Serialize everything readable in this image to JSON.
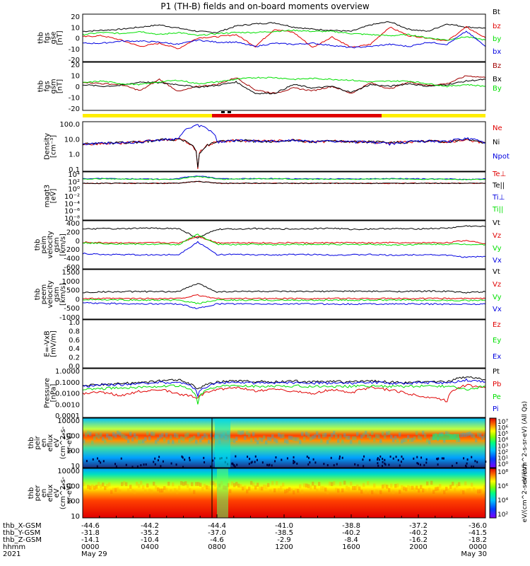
{
  "title": "P1 (TH-B) fields and on-board moments overview",
  "colors": {
    "black": "#000000",
    "red": "#e00000",
    "green": "#00e000",
    "blue": "#0000e0",
    "darkred": "#a00000",
    "bar_yellow": "#ffee00",
    "bar_red": "#e00000"
  },
  "chart_data": [
    {
      "type": "line",
      "ylabel": [
        "thb",
        "fgs",
        "gse",
        "[nT]"
      ],
      "yticks": [
        "20",
        "10",
        "0",
        "-10",
        "-20"
      ],
      "ylim": [
        -20,
        20
      ],
      "series": [
        {
          "name": "Bt",
          "color": "#000000",
          "values": [
            6,
            7,
            8,
            10,
            12,
            9,
            6,
            5,
            11,
            13,
            14,
            10,
            8,
            7,
            6,
            12,
            15,
            8,
            6,
            13,
            10,
            9
          ]
        },
        {
          "name": "bz",
          "color": "#e00000",
          "values": [
            1,
            2,
            -2,
            -8,
            -5,
            -10,
            0,
            1,
            3,
            -8,
            8,
            5,
            -9,
            1,
            -9,
            -6,
            10,
            2,
            0,
            -3,
            10,
            0
          ]
        },
        {
          "name": "by",
          "color": "#00e000",
          "values": [
            3,
            5,
            4,
            6,
            3,
            5,
            2,
            4,
            5,
            5,
            6,
            7,
            6,
            6,
            4,
            3,
            2,
            3,
            0,
            -2,
            1,
            -2
          ]
        },
        {
          "name": "bx",
          "color": "#0000e0",
          "values": [
            -5,
            -5,
            -3,
            -3,
            -4,
            -6,
            -2,
            -4,
            -4,
            -8,
            -5,
            -6,
            -5,
            -7,
            -9,
            -8,
            -6,
            -8,
            -4,
            -6,
            6,
            -8
          ]
        }
      ]
    },
    {
      "type": "line",
      "ylabel": [
        "thb",
        "fgs",
        "gsm",
        "[nT]"
      ],
      "yticks": [
        "20",
        "10",
        "0",
        "-10",
        "-20"
      ],
      "ylim": [
        -25,
        25
      ],
      "series": [
        {
          "name": "Bz",
          "color": "#a00000",
          "values": [
            5,
            3,
            2,
            -5,
            8,
            -6,
            0,
            2,
            10,
            -4,
            -8,
            -2,
            -5,
            0,
            -8,
            4,
            -3,
            5,
            1,
            3,
            12,
            10
          ]
        },
        {
          "name": "Bx",
          "color": "#000000",
          "values": [
            2,
            0,
            1,
            5,
            4,
            2,
            -1,
            1,
            5,
            -8,
            -8,
            2,
            -2,
            0,
            -7,
            2,
            0,
            3,
            0,
            2,
            6,
            8
          ]
        },
        {
          "name": "By",
          "color": "#00e000",
          "values": [
            4,
            6,
            3,
            2,
            5,
            7,
            3,
            5,
            8,
            10,
            10,
            8,
            9,
            8,
            7,
            5,
            6,
            6,
            3,
            0,
            2,
            0
          ]
        }
      ]
    },
    {
      "type": "line",
      "ylabel": [
        "Density",
        "[cm⁻³]"
      ],
      "yticks": [
        "100.0",
        "10.0",
        "1.0",
        "0.1"
      ],
      "ylim": [
        0.03,
        200
      ],
      "log": true,
      "series": [
        {
          "name": "Ne",
          "color": "#e00000",
          "values": [
            4,
            4.5,
            5,
            6,
            9,
            10,
            0.04,
            6,
            8,
            7,
            7,
            8,
            6,
            7,
            6,
            6,
            5,
            6,
            7,
            6,
            8,
            5
          ]
        },
        {
          "name": "Ni",
          "color": "#000000",
          "values": [
            4,
            4.5,
            5,
            6,
            9,
            10,
            0.05,
            6,
            8,
            7,
            7,
            8,
            6,
            7,
            6,
            6,
            5,
            6,
            7,
            6,
            10,
            5
          ]
        },
        {
          "name": "Npot",
          "color": "#0000e0",
          "values": [
            4,
            4.5,
            5,
            6,
            9,
            10,
            150,
            6,
            8,
            7,
            7,
            8,
            6,
            7,
            6,
            6,
            4,
            6,
            7,
            6,
            12,
            5
          ]
        }
      ]
    },
    {
      "type": "line",
      "ylabel": [
        "magt3",
        "[eV]"
      ],
      "yticks": [
        "10⁴",
        "10²",
        "10⁰",
        "10⁻²",
        "10⁻⁴",
        "10⁻⁶",
        "10⁻⁸"
      ],
      "ylim": [
        1e-08,
        10000.0
      ],
      "log": true,
      "series": [
        {
          "name": "Te⊥",
          "color": "#e00000",
          "values": [
            30,
            30,
            30,
            30,
            30,
            30,
            100,
            30,
            30,
            30,
            30,
            30,
            30,
            30,
            30,
            30,
            30,
            30,
            30,
            30,
            30,
            30
          ]
        },
        {
          "name": "Te||",
          "color": "#000000",
          "values": [
            30,
            30,
            30,
            30,
            30,
            30,
            100,
            30,
            30,
            30,
            30,
            30,
            30,
            30,
            30,
            30,
            30,
            30,
            30,
            30,
            30,
            30
          ]
        },
        {
          "name": "Ti⊥",
          "color": "#0000e0",
          "values": [
            500,
            600,
            500,
            500,
            400,
            500,
            3000,
            500,
            500,
            600,
            600,
            500,
            500,
            500,
            500,
            500,
            600,
            500,
            500,
            500,
            300,
            500
          ]
        },
        {
          "name": "Ti||",
          "color": "#00e000",
          "values": [
            400,
            500,
            400,
            400,
            350,
            400,
            2000,
            400,
            400,
            500,
            500,
            400,
            400,
            400,
            400,
            400,
            500,
            400,
            400,
            400,
            300,
            400
          ]
        }
      ]
    },
    {
      "type": "line",
      "ylabel": [
        "thb",
        "peim",
        "velocity",
        "gsm",
        "[km/s]"
      ],
      "yticks": [
        "400",
        "200",
        "0",
        "-200",
        "-400",
        "-600"
      ],
      "ylim": [
        -650,
        500
      ],
      "series": [
        {
          "name": "Vt",
          "color": "#000000",
          "values": [
            330,
            350,
            340,
            360,
            360,
            350,
            100,
            330,
            340,
            350,
            340,
            340,
            350,
            360,
            330,
            340,
            350,
            340,
            350,
            360,
            420,
            400
          ]
        },
        {
          "name": "Vz",
          "color": "#e00000",
          "values": [
            -10,
            -20,
            -20,
            -30,
            -20,
            -30,
            150,
            -20,
            -20,
            -20,
            -30,
            -20,
            -30,
            -20,
            -20,
            -30,
            -20,
            -30,
            -20,
            -20,
            40,
            -40
          ]
        },
        {
          "name": "Vy",
          "color": "#00e000",
          "values": [
            -20,
            -40,
            -50,
            -60,
            -60,
            -70,
            200,
            -60,
            -70,
            -60,
            -70,
            -60,
            -70,
            -60,
            -70,
            -60,
            -80,
            -70,
            -60,
            -60,
            -60,
            -70
          ]
        },
        {
          "name": "Vx",
          "color": "#0000e0",
          "values": [
            -300,
            -330,
            -330,
            -340,
            -340,
            -330,
            0,
            -330,
            -330,
            -340,
            -340,
            -330,
            -330,
            -340,
            -340,
            -330,
            -350,
            -340,
            -330,
            -350,
            -400,
            -380
          ]
        }
      ]
    },
    {
      "type": "line",
      "ylabel": [
        "thb",
        "peem",
        "velocity",
        "gsm",
        "[km/s]"
      ],
      "yticks": [
        "1500",
        "1000",
        "500",
        "0",
        "-500",
        "-1000"
      ],
      "ylim": [
        -1100,
        1600
      ],
      "series": [
        {
          "name": "Vt",
          "color": "#000000",
          "values": [
            350,
            400,
            400,
            420,
            400,
            420,
            900,
            400,
            420,
            430,
            420,
            410,
            420,
            430,
            440,
            420,
            430,
            420,
            440,
            430,
            350,
            400
          ]
        },
        {
          "name": "Vz",
          "color": "#e00000",
          "values": [
            0,
            0,
            0,
            0,
            0,
            0,
            200,
            0,
            0,
            0,
            0,
            0,
            0,
            0,
            0,
            0,
            0,
            0,
            0,
            0,
            0,
            0
          ]
        },
        {
          "name": "Vy",
          "color": "#00e000",
          "values": [
            -50,
            -80,
            -80,
            -100,
            -100,
            -100,
            -300,
            -100,
            -100,
            -100,
            -100,
            -100,
            -100,
            -100,
            -100,
            -100,
            -100,
            -100,
            -100,
            -100,
            -120,
            -100
          ]
        },
        {
          "name": "Vx",
          "color": "#0000e0",
          "values": [
            -250,
            -300,
            -300,
            -320,
            -320,
            -320,
            -600,
            -320,
            -320,
            -330,
            -330,
            -320,
            -320,
            -330,
            -330,
            -320,
            -330,
            -320,
            -330,
            -340,
            -330,
            -330
          ]
        }
      ]
    },
    {
      "type": "line",
      "ylabel": [
        "E=-VxB",
        "[mV/m]"
      ],
      "yticks": [
        "1.0",
        "0.8",
        "0.6",
        "0.4",
        "0.2",
        "0.0"
      ],
      "ylim": [
        0,
        1
      ],
      "series": [
        {
          "name": "Ez",
          "color": "#e00000",
          "values": []
        },
        {
          "name": "Ey",
          "color": "#00e000",
          "values": []
        },
        {
          "name": "Ex",
          "color": "#0000e0",
          "values": []
        }
      ]
    },
    {
      "type": "line",
      "ylabel": [
        "Pressure",
        "[nPa]"
      ],
      "yticks": [
        "1.0000",
        "0.1000",
        "0.0100",
        "0.0010",
        "0.0001"
      ],
      "ylim": [
        0.0001,
        1
      ],
      "log": true,
      "series": [
        {
          "name": "Pt",
          "color": "#000000",
          "values": [
            0.05,
            0.06,
            0.07,
            0.09,
            0.12,
            0.15,
            0.02,
            0.1,
            0.12,
            0.11,
            0.1,
            0.12,
            0.1,
            0.11,
            0.1,
            0.12,
            0.1,
            0.09,
            0.1,
            0.1,
            0.3,
            0.15
          ]
        },
        {
          "name": "Pb",
          "color": "#e00000",
          "values": [
            0.01,
            0.012,
            0.005,
            0.015,
            0.02,
            0.008,
            0.004,
            0.02,
            0.03,
            0.015,
            0.02,
            0.015,
            0.008,
            0.02,
            0.01,
            0.03,
            0.02,
            0.008,
            0.004,
            0.002,
            0.05,
            0.03
          ]
        },
        {
          "name": "Pe",
          "color": "#00e000",
          "values": [
            0.02,
            0.025,
            0.03,
            0.035,
            0.04,
            0.045,
            0.001,
            0.04,
            0.045,
            0.04,
            0.04,
            0.045,
            0.04,
            0.04,
            0.04,
            0.045,
            0.04,
            0.04,
            0.045,
            0.04,
            0.02,
            0.04
          ]
        },
        {
          "name": "Pi",
          "color": "#0000e0",
          "values": [
            0.04,
            0.05,
            0.06,
            0.07,
            0.09,
            0.1,
            0.006,
            0.08,
            0.09,
            0.08,
            0.08,
            0.09,
            0.08,
            0.08,
            0.08,
            0.09,
            0.08,
            0.08,
            0.09,
            0.08,
            0.15,
            0.1
          ]
        }
      ]
    },
    {
      "type": "heatmap",
      "ylabel": [
        "thb",
        "peir",
        "en",
        "eflux",
        "eV",
        "(cm^2-s-",
        "sr-eV)"
      ],
      "yticks": [
        "10000",
        "1000",
        "100",
        "10"
      ],
      "colorbar_ticks": [
        "10⁷",
        "10⁶",
        "10⁵",
        "10⁴",
        "10³",
        "10²",
        "10¹",
        "10⁰"
      ],
      "colorbar_label": "eV/(cm^2-s-sr-eV) (All Qs)"
    },
    {
      "type": "heatmap",
      "ylabel": [
        "thb",
        "peer",
        "en",
        "eflux",
        "eV",
        "(cm^2-s-",
        "sr-eV)"
      ],
      "yticks": [
        "10000",
        "1000",
        "100",
        "10"
      ],
      "colorbar_ticks": [
        "10⁸",
        "10⁶",
        "10⁴",
        "10²"
      ],
      "colorbar_label": "eV/(cm^2-s-sr-eV)"
    }
  ],
  "xaxis": {
    "row_labels": [
      "thb_X-GSM",
      "thb_Y-GSM",
      "thb_Z-GSM",
      "hhmm",
      "2021"
    ],
    "columns": [
      {
        "x": "-44.6",
        "y": "-31.8",
        "z": "-14.1",
        "hhmm": "0000",
        "date": "May 29"
      },
      {
        "x": "-44.2",
        "y": "-35.2",
        "z": "-10.4",
        "hhmm": "0400",
        "date": ""
      },
      {
        "x": "-44.4",
        "y": "-37.0",
        "z": "-4.6",
        "hhmm": "0800",
        "date": ""
      },
      {
        "x": "-41.0",
        "y": "-38.5",
        "z": "-2.9",
        "hhmm": "1200",
        "date": ""
      },
      {
        "x": "-38.8",
        "y": "-40.2",
        "z": "-8.4",
        "hhmm": "1600",
        "date": ""
      },
      {
        "x": "-37.2",
        "y": "-40.2",
        "z": "-16.2",
        "hhmm": "2000",
        "date": ""
      },
      {
        "x": "-36.0",
        "y": "-41.5",
        "z": "-18.2",
        "hhmm": "0000",
        "date": "May 30"
      }
    ]
  }
}
